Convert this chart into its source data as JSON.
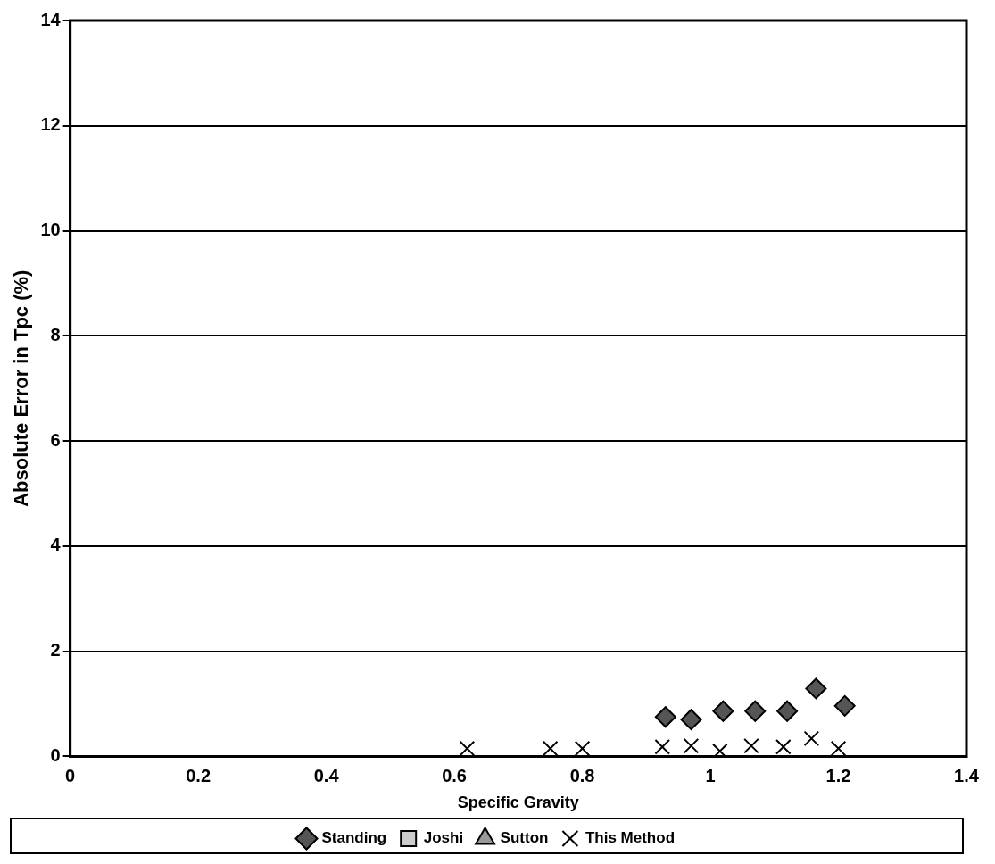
{
  "chart_data": {
    "type": "scatter",
    "xlabel": "Specific Gravity",
    "ylabel": "Absolute Error in Tpc (%)",
    "xlim": [
      0,
      1.4
    ],
    "xticks": [
      0,
      0.2,
      0.4,
      0.6,
      0.8,
      1,
      1.2,
      1.4
    ],
    "ylim": [
      0,
      14
    ],
    "yticks": [
      0,
      2,
      4,
      6,
      8,
      10,
      12,
      14
    ],
    "grid": "y",
    "legend": "bottom",
    "series": [
      {
        "name": "Standing",
        "color": "#555555",
        "marker": "diamond",
        "x": [
          0.93,
          0.97,
          1.02,
          1.07,
          1.12,
          1.165,
          1.21
        ],
        "values": [
          0.75,
          0.7,
          0.86,
          0.86,
          0.86,
          1.29,
          0.96
        ]
      },
      {
        "name": "Joshi",
        "color": "#cccccc",
        "marker": "square"
      },
      {
        "name": "Sutton",
        "color": "#999999",
        "marker": "triangle"
      },
      {
        "name": "This Method",
        "color": "#000000",
        "marker": "cross",
        "x": [
          0.62,
          0.75,
          0.8,
          0.925,
          0.97,
          1.015,
          1.064,
          1.114,
          1.158,
          1.2
        ],
        "values": [
          0.15,
          0.15,
          0.15,
          0.18,
          0.2,
          0.1,
          0.2,
          0.18,
          0.34,
          0.15
        ]
      }
    ]
  }
}
